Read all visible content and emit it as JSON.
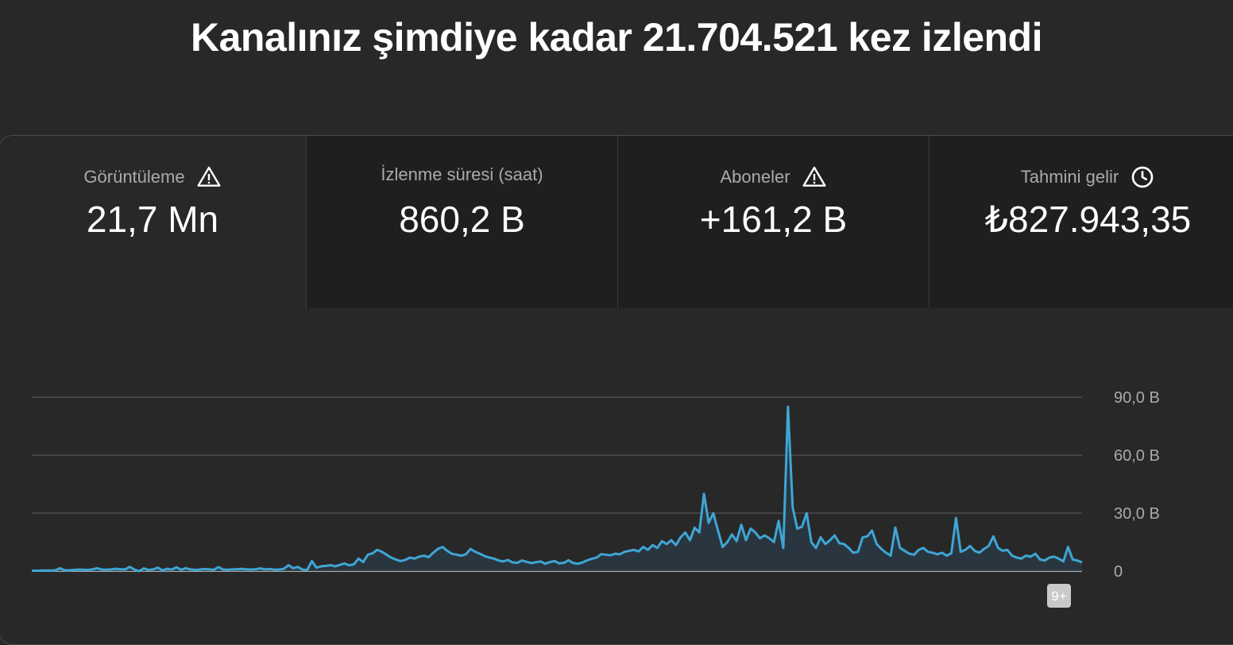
{
  "headline": "Kanalınız şimdiye kadar 21.704.521 kez izlendi",
  "metrics": [
    {
      "label": "Görüntüleme",
      "value": "21,7 Mn",
      "icon": "warning-icon",
      "selected": true
    },
    {
      "label": "İzlenme süresi (saat)",
      "value": "860,2 B",
      "icon": "",
      "selected": false
    },
    {
      "label": "Aboneler",
      "value": "+161,2 B",
      "icon": "warning-icon",
      "selected": false
    },
    {
      "label": "Tahmini gelir",
      "value": "₺827.943,35",
      "icon": "clock-icon",
      "selected": false
    }
  ],
  "colors": {
    "line": "#3ea6d5",
    "fill": "#2a3a45",
    "grid": "#4a4a4a",
    "axis_text": "#aaaaaa"
  },
  "chart_data": {
    "type": "area",
    "xlabel": "",
    "ylabel": "",
    "ylim": [
      0,
      90000
    ],
    "yticks": [
      0,
      30000,
      60000,
      90000
    ],
    "ytick_labels": [
      "0",
      "30,0 B",
      "60,0 B",
      "90,0 B"
    ],
    "grid": true,
    "badge": "9+",
    "series": [
      {
        "values": [
          200,
          200,
          250,
          300,
          300,
          400,
          1500,
          500,
          400,
          600,
          800,
          700,
          600,
          900,
          1500,
          800,
          700,
          900,
          1200,
          1000,
          900,
          2200,
          800,
          -500,
          1400,
          600,
          900,
          1800,
          400,
          1200,
          800,
          2000,
          700,
          1500,
          900,
          600,
          800,
          1100,
          900,
          700,
          2100,
          800,
          700,
          900,
          1000,
          1200,
          900,
          800,
          1000,
          1400,
          900,
          1100,
          700,
          800,
          1200,
          3100,
          1500,
          2200,
          800,
          600,
          5200,
          1800,
          2500,
          2700,
          3100,
          2500,
          3200,
          4000,
          3000,
          3500,
          6500,
          4700,
          8500,
          9200,
          11000,
          10000,
          8500,
          7000,
          6000,
          5200,
          5800,
          7000,
          6500,
          7500,
          8000,
          7200,
          9500,
          11500,
          12500,
          10500,
          9000,
          8500,
          8000,
          8700,
          11500,
          10000,
          9000,
          7800,
          7000,
          6500,
          5500,
          5000,
          5800,
          4500,
          4300,
          5500,
          4800,
          4200,
          4600,
          5000,
          3800,
          4700,
          5200,
          4000,
          4300,
          5600,
          4200,
          3800,
          4500,
          5600,
          6400,
          7000,
          8800,
          8500,
          8200,
          9000,
          8700,
          10000,
          10500,
          11000,
          10200,
          12500,
          11000,
          13500,
          12000,
          15500,
          14000,
          16000,
          13500,
          17500,
          20000,
          16000,
          22500,
          20000,
          40000,
          25000,
          30000,
          21000,
          12500,
          15000,
          19000,
          15500,
          24000,
          16000,
          22000,
          20000,
          17000,
          18500,
          17000,
          15000,
          26000,
          12000,
          85000,
          33000,
          22000,
          23000,
          30000,
          15000,
          12000,
          17500,
          14000,
          16000,
          18500,
          14500,
          14000,
          12000,
          9500,
          10000,
          17500,
          18000,
          21000,
          14000,
          11500,
          9500,
          8000,
          22500,
          12000,
          10500,
          9000,
          8500,
          11000,
          12000,
          10000,
          9500,
          8700,
          9500,
          8000,
          9300,
          27500,
          10000,
          11000,
          13000,
          10500,
          9500,
          11500,
          13000,
          18000,
          12000,
          10500,
          11000,
          8000,
          7000,
          6500,
          8000,
          7500,
          9000,
          6000,
          5500,
          7000,
          7500,
          6500,
          5000,
          12500,
          6000,
          5500,
          4500
        ]
      }
    ]
  }
}
